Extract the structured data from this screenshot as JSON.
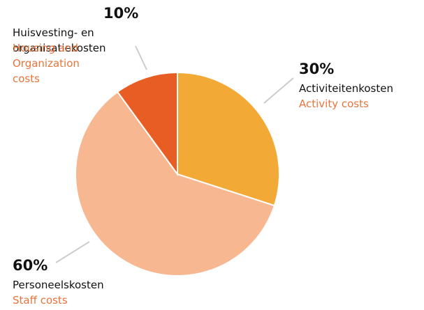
{
  "chart_data": {
    "type": "pie",
    "categories": [
      "Activiteitenkosten",
      "Personeelskosten",
      "Huisvesting- en organisatiekosten"
    ],
    "categories_en": [
      "Activity costs",
      "Staff costs",
      "Housing and Organization costs"
    ],
    "values": [
      30,
      60,
      10
    ],
    "value_labels": [
      "30%",
      "60%",
      "10%"
    ],
    "colors": [
      "#f2a935",
      "#f7b891",
      "#e85d24"
    ]
  }
}
